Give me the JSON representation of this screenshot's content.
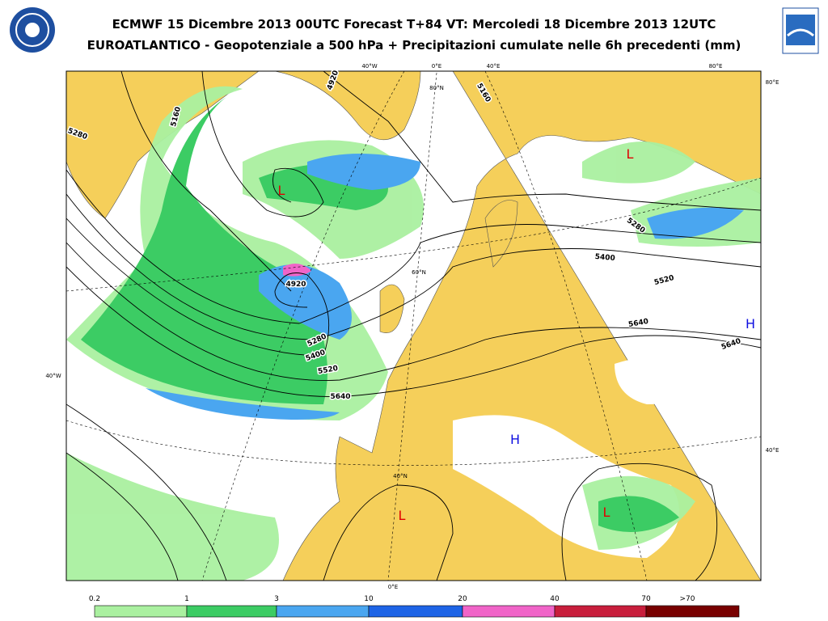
{
  "header": {
    "title": "ECMWF 15 Dicembre 2013 00UTC Forecast T+84 VT: Mercoledi 18 Dicembre 2013 12UTC",
    "subtitle": "EUROATLANTICO - Geopotenziale a 500 hPa + Precipitazioni cumulate nelle 6h precedenti (mm)"
  },
  "map": {
    "grid_labels": [
      "40°W",
      "0°E",
      "40°E",
      "80°E",
      "80°E",
      "40°E",
      "40°W",
      "0°E",
      "80°N",
      "60°N",
      "40°N"
    ],
    "contour_labels": [
      "4920",
      "5160",
      "5280",
      "5160",
      "4920",
      "5280",
      "5400",
      "5520",
      "5640",
      "5280",
      "5400",
      "5520",
      "5640",
      "5640"
    ],
    "lows": [
      "L",
      "L",
      "L",
      "L"
    ],
    "highs": [
      "H",
      "H"
    ]
  },
  "legend": {
    "ticks": [
      "0.2",
      "1",
      "3",
      "10",
      "20",
      "40",
      "70",
      ">70"
    ],
    "colors": [
      "#aaf0a0",
      "#3ccc64",
      "#4aa6f0",
      "#1e64e6",
      "#f064c8",
      "#c81e3c",
      "#780000"
    ]
  }
}
